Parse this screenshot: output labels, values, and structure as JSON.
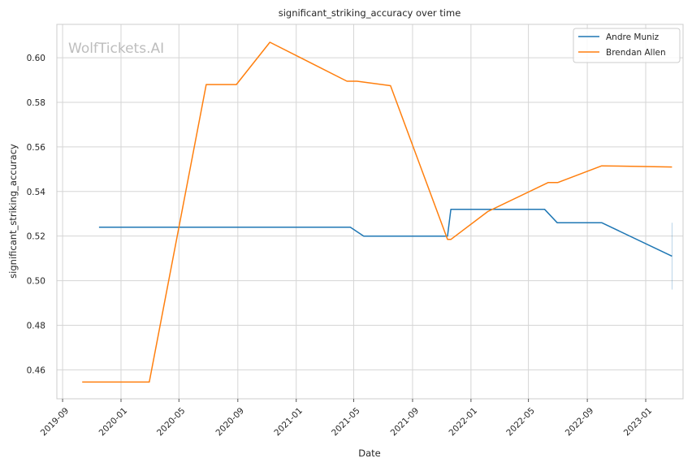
{
  "chart_data": {
    "type": "line",
    "title": "significant_striking_accuracy over time",
    "xlabel": "Date",
    "ylabel": "significant_striking_accuracy",
    "watermark": "WolfTickets.AI",
    "xlim": [
      "2019-08-20",
      "2023-03-20"
    ],
    "ylim": [
      0.447,
      0.615
    ],
    "x_ticks": [
      "2019-09",
      "2020-01",
      "2020-05",
      "2020-09",
      "2021-01",
      "2021-05",
      "2021-09",
      "2022-01",
      "2022-05",
      "2022-09",
      "2023-01"
    ],
    "y_ticks": [
      0.46,
      0.48,
      0.5,
      0.52,
      0.54,
      0.56,
      0.58,
      0.6
    ],
    "grid": true,
    "legend_position": "top-right",
    "series": [
      {
        "name": "Andre Muniz",
        "color": "#1f77b4",
        "points": [
          {
            "x": "2019-11-16",
            "y": 0.524
          },
          {
            "x": "2021-04-24",
            "y": 0.524
          },
          {
            "x": "2021-05-22",
            "y": 0.52
          },
          {
            "x": "2021-11-13",
            "y": 0.52
          },
          {
            "x": "2021-11-20",
            "y": 0.532
          },
          {
            "x": "2022-06-04",
            "y": 0.532
          },
          {
            "x": "2022-06-30",
            "y": 0.526
          },
          {
            "x": "2022-10-01",
            "y": 0.526
          },
          {
            "x": "2023-02-25",
            "y": 0.511
          }
        ],
        "band": {
          "x": "2023-02-25",
          "low": 0.496,
          "high": 0.526
        }
      },
      {
        "name": "Brendan Allen",
        "color": "#ff7f0e",
        "points": [
          {
            "x": "2019-10-12",
            "y": 0.4545
          },
          {
            "x": "2020-02-29",
            "y": 0.4545
          },
          {
            "x": "2020-06-27",
            "y": 0.588
          },
          {
            "x": "2020-08-29",
            "y": 0.588
          },
          {
            "x": "2020-11-07",
            "y": 0.607
          },
          {
            "x": "2021-04-17",
            "y": 0.5895
          },
          {
            "x": "2021-05-08",
            "y": 0.5895
          },
          {
            "x": "2021-07-17",
            "y": 0.5875
          },
          {
            "x": "2021-11-13",
            "y": 0.5185
          },
          {
            "x": "2021-11-20",
            "y": 0.5185
          },
          {
            "x": "2022-02-05",
            "y": 0.531
          },
          {
            "x": "2022-06-11",
            "y": 0.544
          },
          {
            "x": "2022-07-01",
            "y": 0.544
          },
          {
            "x": "2022-10-01",
            "y": 0.5515
          },
          {
            "x": "2023-02-25",
            "y": 0.551
          }
        ]
      }
    ]
  }
}
